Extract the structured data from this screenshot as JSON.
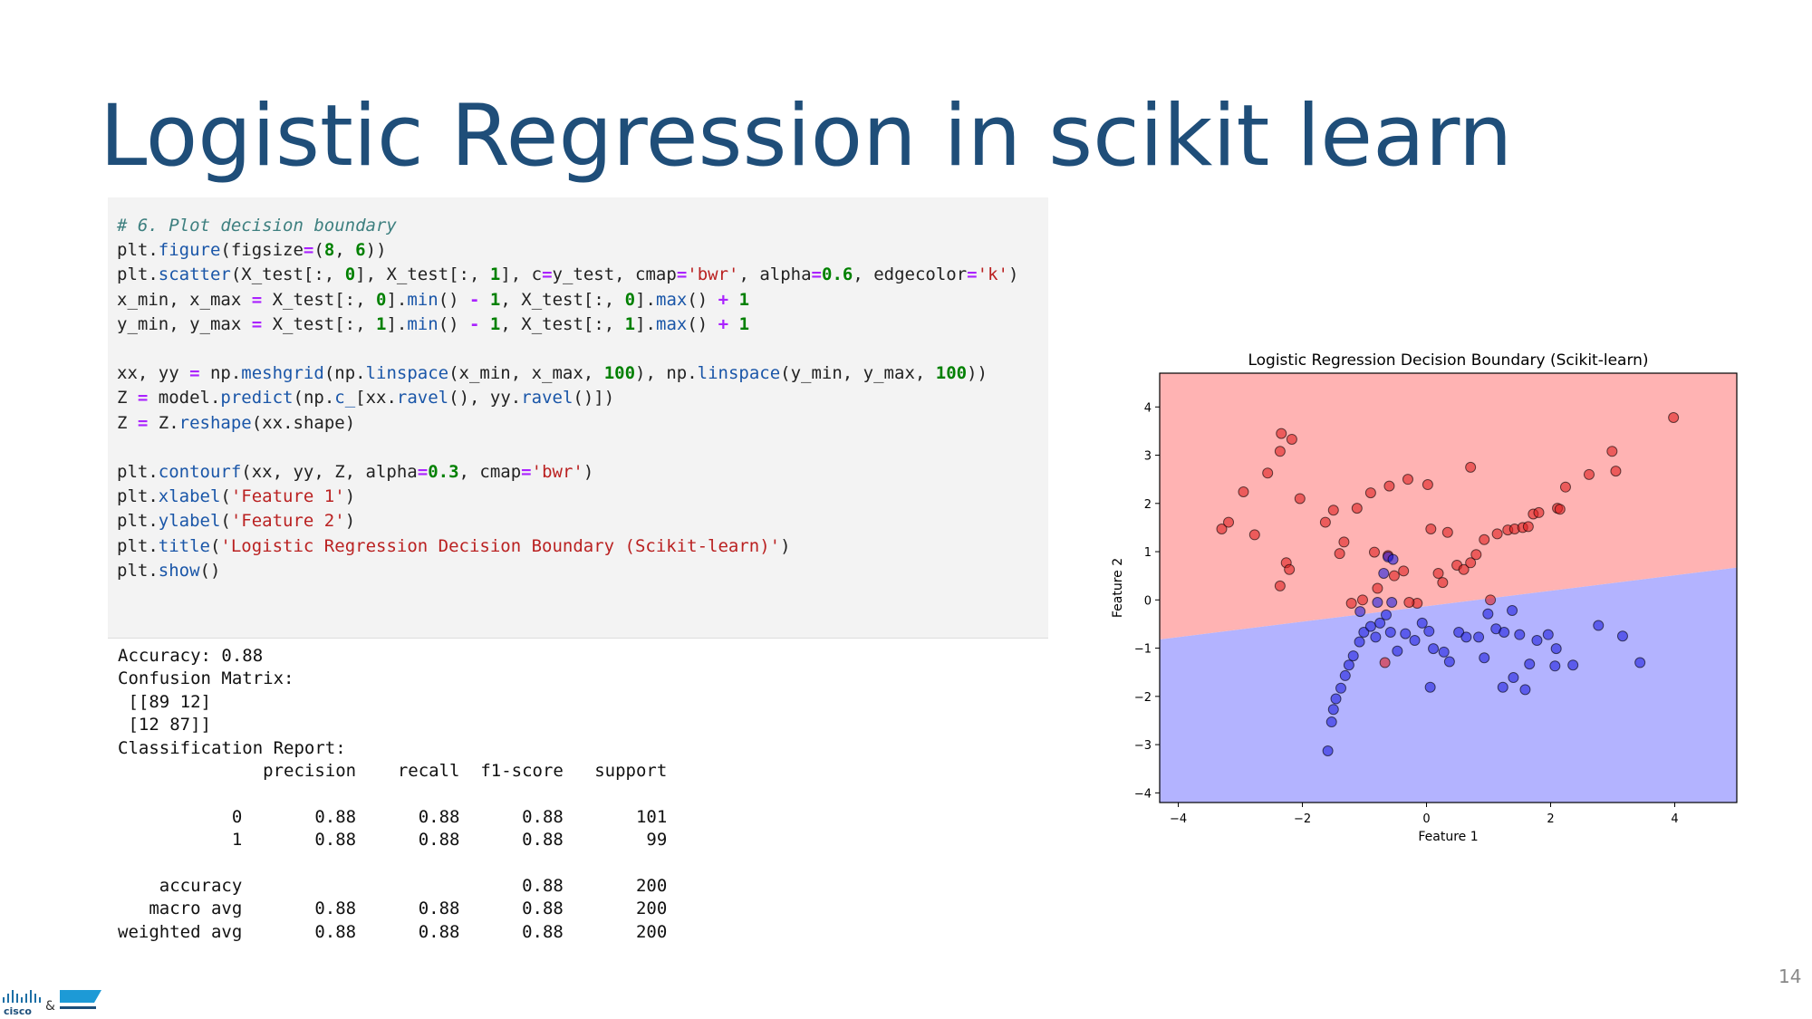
{
  "slide": {
    "title": "Logistic Regression in scikit learn",
    "page_number": "14",
    "logo": {
      "brand": "cisco",
      "joiner": "&"
    }
  },
  "code": {
    "blocks": [
      [
        "# 6. Plot decision boundary",
        "plt.figure(figsize=(8, 6))",
        "plt.scatter(X_test[:, 0], X_test[:, 1], c=y_test, cmap='bwr', alpha=0.6, edgecolor='k')",
        "x_min, x_max = X_test[:, 0].min() - 1, X_test[:, 0].max() + 1",
        "y_min, y_max = X_test[:, 1].min() - 1, X_test[:, 1].max() + 1"
      ],
      [
        "xx, yy = np.meshgrid(np.linspace(x_min, x_max, 100), np.linspace(y_min, y_max, 100))",
        "Z = model.predict(np.c_[xx.ravel(), yy.ravel()])",
        "Z = Z.reshape(xx.shape)"
      ],
      [
        "plt.contourf(xx, yy, Z, alpha=0.3, cmap='bwr')",
        "plt.xlabel('Feature 1')",
        "plt.ylabel('Feature 2')",
        "plt.title('Logistic Regression Decision Boundary (Scikit-learn)')",
        "plt.show()"
      ]
    ]
  },
  "output": {
    "blocks": [
      [
        "Accuracy: 0.88",
        "Confusion Matrix:",
        " [[89 12]",
        " [12 87]]",
        "Classification Report:",
        "              precision    recall  f1-score   support"
      ],
      [
        "           0       0.88      0.88      0.88       101",
        "           1       0.88      0.88      0.88        99"
      ],
      [
        "    accuracy                           0.88       200",
        "   macro avg       0.88      0.88      0.88       200",
        "weighted avg       0.88      0.88      0.88       200"
      ]
    ]
  },
  "chart_data": {
    "type": "scatter",
    "title": "Logistic Regression Decision Boundary (Scikit-learn)",
    "x_label": "Feature 1",
    "y_label": "Feature 2",
    "xlim": [
      -4.3,
      5.0
    ],
    "ylim": [
      -4.2,
      4.7
    ],
    "xticks": [
      {
        "value": -4,
        "label": "−4"
      },
      {
        "value": -2,
        "label": "−2"
      },
      0,
      2,
      4
    ],
    "yticks": [
      {
        "value": -4,
        "label": "−4"
      },
      {
        "value": -3,
        "label": "−3"
      },
      {
        "value": -2,
        "label": "−2"
      },
      {
        "value": -1,
        "label": "−1"
      },
      0,
      1,
      2,
      3,
      4
    ],
    "boundary": {
      "x": [
        -4.3,
        5.0
      ],
      "y": [
        -0.82,
        0.67
      ],
      "above_color": "#ffb3b3",
      "below_color": "#b3b3ff"
    },
    "series": [
      {
        "color": "#e02020",
        "x": [
          -3.3,
          -3.19,
          -2.95,
          -2.56,
          -2.34,
          -2.17,
          -2.36,
          -2.04,
          -2.77,
          -2.26,
          -2.21,
          -2.36,
          -1.63,
          -1.5,
          -1.33,
          -1.4,
          -1.12,
          -0.9,
          -0.6,
          -0.3,
          0.02,
          0.71,
          -0.84,
          -0.62,
          -1.03,
          -0.79,
          -0.37,
          -0.15,
          0.07,
          0.34,
          0.19,
          0.26,
          0.49,
          0.6,
          0.71,
          0.8,
          0.93,
          1.14,
          1.31,
          1.42,
          1.55,
          1.64,
          1.72,
          1.81,
          2.11,
          2.15,
          2.24,
          2.62,
          2.99,
          3.05,
          3.98,
          1.03,
          -0.28,
          -0.52,
          -1.21,
          -0.67
        ],
        "values": [
          1.47,
          1.61,
          2.24,
          2.63,
          3.45,
          3.33,
          3.08,
          2.1,
          1.35,
          0.77,
          0.63,
          0.29,
          1.61,
          1.86,
          1.2,
          0.96,
          1.9,
          2.22,
          2.36,
          2.5,
          2.39,
          2.75,
          0.99,
          0.92,
          0,
          0.24,
          0.6,
          -0.07,
          1.47,
          1.4,
          0.55,
          0.36,
          0.72,
          0.63,
          0.77,
          0.94,
          1.25,
          1.37,
          1.45,
          1.47,
          1.5,
          1.52,
          1.78,
          1.81,
          1.9,
          1.88,
          2.34,
          2.6,
          3.08,
          2.67,
          3.78,
          0.0,
          -0.05,
          0.5,
          -0.07,
          -1.3
        ]
      },
      {
        "color": "#2020e0",
        "x": [
          -1.59,
          -1.53,
          -1.5,
          -1.46,
          -1.38,
          -1.31,
          -1.25,
          -1.18,
          -1.08,
          -1.01,
          -0.9,
          -0.82,
          -0.75,
          -0.65,
          -0.58,
          -0.79,
          -1.07,
          -0.62,
          -0.54,
          -0.69,
          -0.56,
          -0.19,
          -0.07,
          0.06,
          0.11,
          0.28,
          0.37,
          0.52,
          0.64,
          0.84,
          0.99,
          1.12,
          1.25,
          1.38,
          1.23,
          1.4,
          1.59,
          1.66,
          1.78,
          1.96,
          2.09,
          2.36,
          2.77,
          3.16,
          3.44,
          0.04,
          -0.34,
          -0.47,
          0.93,
          1.5,
          2.07
        ],
        "values": [
          -3.13,
          -2.53,
          -2.27,
          -2.05,
          -1.83,
          -1.57,
          -1.35,
          -1.16,
          -0.87,
          -0.67,
          -0.55,
          -0.77,
          -0.48,
          -0.31,
          -0.67,
          -0.05,
          -0.24,
          0.89,
          0.84,
          0.55,
          -0.05,
          -0.84,
          -0.48,
          -1.81,
          -1.01,
          -1.08,
          -1.28,
          -0.67,
          -0.77,
          -0.77,
          -0.29,
          -0.6,
          -0.67,
          -0.22,
          -1.81,
          -1.61,
          -1.86,
          -1.33,
          -0.84,
          -0.72,
          -1.01,
          -1.35,
          -0.53,
          -0.75,
          -1.3,
          -0.65,
          -0.7,
          -1.06,
          -1.2,
          -0.72,
          -1.37
        ]
      }
    ]
  }
}
